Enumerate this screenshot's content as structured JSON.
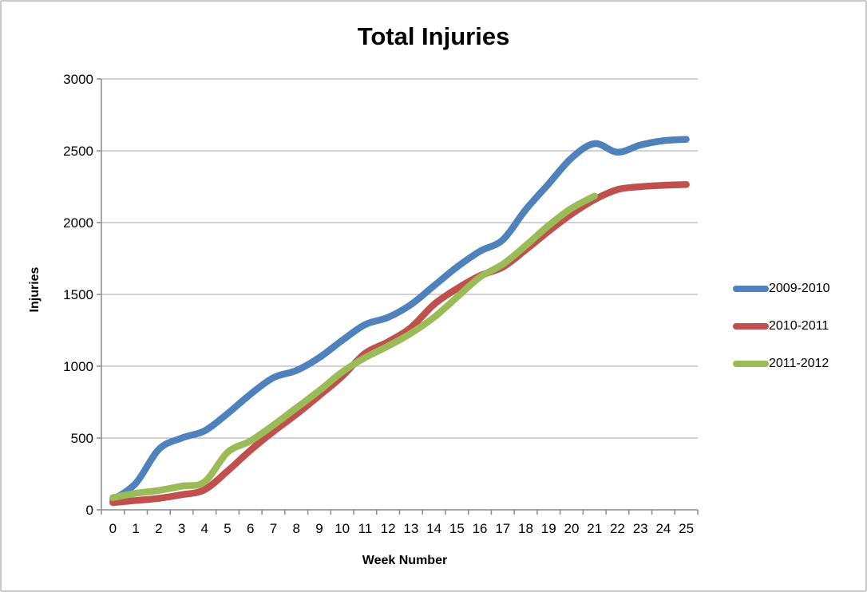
{
  "title": "Total Injuries",
  "axes": {
    "x_title": "Week Number",
    "y_title": "Injuries"
  },
  "chart_data": {
    "type": "line",
    "title": "Total Injuries",
    "xlabel": "Week Number",
    "ylabel": "Injuries",
    "categories": [
      "0",
      "1",
      "2",
      "3",
      "4",
      "5",
      "6",
      "7",
      "8",
      "9",
      "10",
      "11",
      "12",
      "13",
      "14",
      "15",
      "16",
      "17",
      "18",
      "19",
      "20",
      "21",
      "22",
      "23",
      "24",
      "25"
    ],
    "ylim": [
      0,
      3000
    ],
    "ytick_interval": 500,
    "yticks": [
      "0",
      "500",
      "1000",
      "1500",
      "2000",
      "2500",
      "3000"
    ],
    "grid": "horizontal",
    "smoothed": true,
    "legend_position": "right",
    "series": [
      {
        "name": "2009-2010",
        "color": "#4F81BD",
        "values": [
          70,
          185,
          420,
          500,
          550,
          670,
          805,
          920,
          970,
          1060,
          1180,
          1290,
          1340,
          1430,
          1560,
          1690,
          1800,
          1880,
          2090,
          2270,
          2450,
          2550,
          2490,
          2540,
          2570,
          2580
        ]
      },
      {
        "name": "2010-2011",
        "color": "#C0504D",
        "values": [
          50,
          65,
          80,
          105,
          140,
          270,
          415,
          545,
          665,
          795,
          930,
          1090,
          1170,
          1270,
          1430,
          1540,
          1630,
          1690,
          1810,
          1940,
          2060,
          2160,
          2230,
          2250,
          2260,
          2265
        ]
      },
      {
        "name": "2011-2012",
        "color": "#9BBB59",
        "values": [
          85,
          115,
          135,
          165,
          195,
          400,
          480,
          590,
          710,
          830,
          960,
          1060,
          1140,
          1230,
          1340,
          1480,
          1620,
          1710,
          1840,
          1980,
          2100,
          2185
        ]
      }
    ]
  },
  "colors": {
    "gridline": "#A6A6A6",
    "axis": "#8C8C8C",
    "tick_text": "#000000",
    "frame": "#C9C9C9"
  }
}
